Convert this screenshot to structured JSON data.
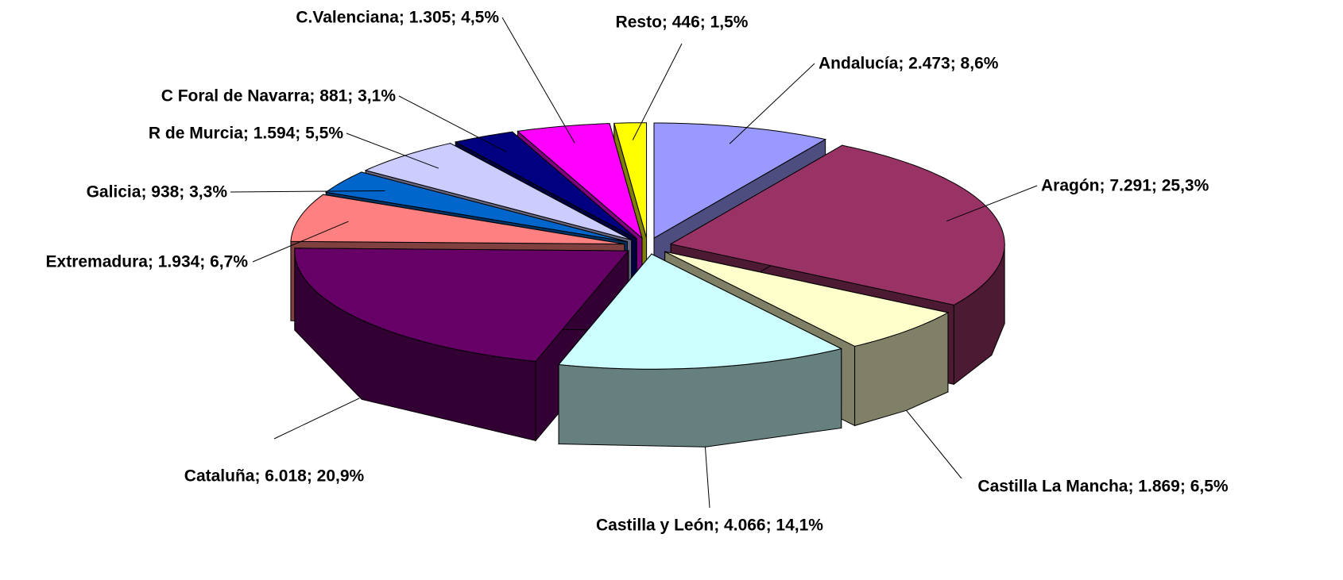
{
  "chart_data": {
    "type": "pie3d",
    "values": [
      2473,
      7291,
      1869,
      4066,
      6018,
      1934,
      938,
      1594,
      881,
      1305,
      446
    ],
    "value_labels": [
      "Andalucía; 2.473; 8,6%",
      "Aragón; 7.291; 25,3%",
      "Castilla La Mancha; 1.869; 6,5%",
      "Castilla y León; 4.066; 14,1%",
      "Cataluña; 6.018; 20,9%",
      "Extremadura; 1.934; 6,7%",
      "Galicia; 938; 3,3%",
      "R de Murcia; 1.594; 5,5%",
      "C Foral de Navarra; 881; 3,1%",
      "C.Valenciana; 1.305; 4,5%",
      "Resto; 446; 1,5%"
    ],
    "colors": [
      "#9999ff",
      "#993366",
      "#ffffcc",
      "#ccffff",
      "#660066",
      "#ff8080",
      "#0066cc",
      "#ccccff",
      "#000080",
      "#ff00ff",
      "#ffff00"
    ]
  }
}
